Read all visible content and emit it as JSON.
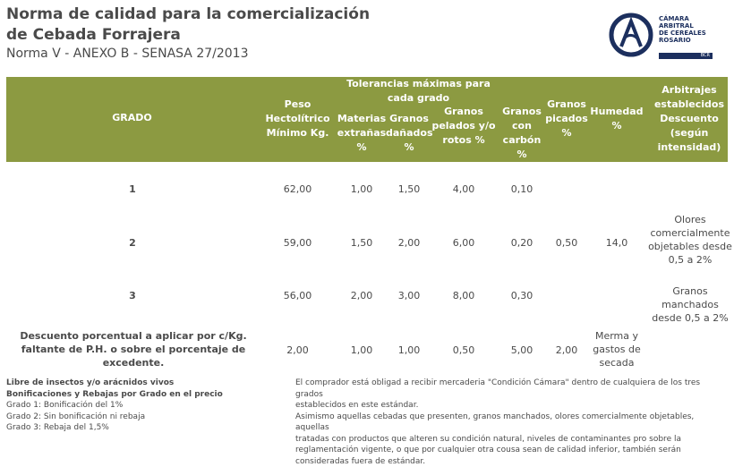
{
  "header": {
    "title_line1": "Norma de calidad para la comercialización",
    "title_line2": "de Cebada Forrajera",
    "subtitle": "Norma V - ANEXO B - SENASA 27/2013"
  },
  "logo": {
    "lines": [
      "CÁMARA",
      "ARBITRAL",
      "DE CEREALES",
      "ROSARIO"
    ],
    "bar": "BCR",
    "brand_color": "#1c2f5e"
  },
  "table": {
    "header_color": "#8c9a41",
    "columns": {
      "grado": "GRADO",
      "peso": "Peso Hectolítrico Mínimo Kg.",
      "tolerancias": "Tolerancias máximas para cada grado",
      "materias": "Materias extrañas %",
      "danados": "Granos dañados %",
      "pelados": "Granos pelados y/o rotos %",
      "carbon": "Granos con carbón %",
      "picados": "Granos picados %",
      "humedad": "Humedad %",
      "arbitrajes": "Arbitrajes establecidos Descuento (según intensidad)"
    },
    "rows": [
      {
        "grado": "1",
        "peso": "62,00",
        "materias": "1,00",
        "danados": "1,50",
        "pelados": "4,00",
        "carbon": "0,10",
        "picados": "",
        "humedad": "",
        "arbitrajes": ""
      },
      {
        "grado": "2",
        "peso": "59,00",
        "materias": "1,50",
        "danados": "2,00",
        "pelados": "6,00",
        "carbon": "0,20",
        "picados": "0,50",
        "humedad": "14,0",
        "arbitrajes": "Olores comercialmente objetables desde 0,5 a 2%"
      },
      {
        "grado": "3",
        "peso": "56,00",
        "materias": "2,00",
        "danados": "3,00",
        "pelados": "8,00",
        "carbon": "0,30",
        "picados": "",
        "humedad": "",
        "arbitrajes": "Granos manchados desde 0,5 a 2%"
      }
    ],
    "descuento": {
      "label": "Descuento porcentual a aplicar por c/Kg. faltante de P.H. o sobre el porcentaje de excedente.",
      "peso": "2,00",
      "materias": "1,00",
      "danados": "1,00",
      "pelados": "0,50",
      "carbon": "5,00",
      "picados": "2,00",
      "humedad": "Merma y gastos de secada"
    }
  },
  "footer": {
    "left": [
      "Libre de insectos y/o arácnidos vivos",
      "Bonificaciones y Rebajas por Grado en el precio",
      "Grado 1: Bonificación del 1%",
      "Grado 2: Sin bonificación ni rebaja",
      "Grado 3: Rebaja del 1,5%"
    ],
    "right": [
      "El comprador está obligad a recibir mercaderia \"Condición Cámara\" dentro de cualquiera de los tres grados",
      "establecidos en este estándar.",
      "Asimismo aquellas cebadas que presenten, granos manchados, olores comercialmente objetables, aquellas",
      "tratadas con productos que alteren su condición natural, niveles de contaminantes pro sobre la",
      "reglamentación vigente, o que por cualquier otra cousa sean de calidad inferior, también serán",
      "consideradas fuera de estándar."
    ]
  }
}
